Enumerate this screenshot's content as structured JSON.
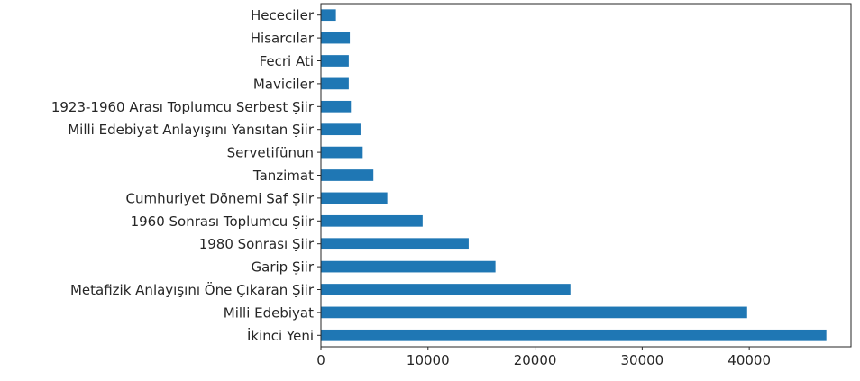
{
  "chart_data": {
    "type": "bar",
    "orientation": "horizontal",
    "categories": [
      "Hececiler",
      "Hisarcılar",
      "Fecri Ati",
      "Maviciler",
      "1923-1960 Arası Toplumcu Serbest Şiir",
      "Milli Edebiyat Anlayışını Yansıtan Şiir",
      "Servetifünun",
      "Tanzimat",
      "Cumhuriyet Dönemi Saf Şiir",
      "1960 Sonrası Toplumcu Şiir",
      "1980 Sonrası Şiir",
      "Garip Şiir",
      "Metafizik Anlayışını Öne Çıkaran Şiir",
      "Milli Edebiyat",
      "İkinci Yeni"
    ],
    "values": [
      1400,
      2700,
      2600,
      2600,
      2800,
      3700,
      3900,
      4900,
      6200,
      9500,
      13800,
      16300,
      23300,
      39800,
      47200
    ],
    "xlim": [
      0,
      49500
    ],
    "xticks": [
      0,
      10000,
      20000,
      30000,
      40000
    ],
    "xtick_labels": [
      "0",
      "10000",
      "20000",
      "30000",
      "40000"
    ],
    "bar_color": "#1f77b4",
    "grid": false,
    "legend": "none",
    "title": "",
    "xlabel": "",
    "ylabel": ""
  }
}
